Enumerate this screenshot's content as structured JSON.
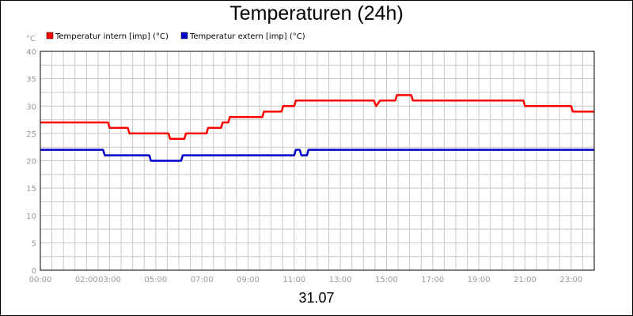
{
  "chart_data": {
    "type": "line",
    "title": "Temperaturen (24h)",
    "ylabel": "°C",
    "xlabel": "",
    "date_label": "31.07",
    "ylim": [
      0,
      40
    ],
    "xlim": [
      0,
      24
    ],
    "y_ticks": [
      "0",
      "5",
      "10",
      "15",
      "20",
      "25",
      "30",
      "35",
      "40"
    ],
    "x_ticks": [
      {
        "t": 0,
        "label": "00:00"
      },
      {
        "t": 2,
        "label": "02:00"
      },
      {
        "t": 3,
        "label": "03:00"
      },
      {
        "t": 5,
        "label": "05:00"
      },
      {
        "t": 7,
        "label": "07:00"
      },
      {
        "t": 9,
        "label": "09:00"
      },
      {
        "t": 11,
        "label": "11:00"
      },
      {
        "t": 13,
        "label": "13:00"
      },
      {
        "t": 15,
        "label": "15:00"
      },
      {
        "t": 17,
        "label": "17:00"
      },
      {
        "t": 19,
        "label": "19:00"
      },
      {
        "t": 21,
        "label": "21:00"
      },
      {
        "t": 23,
        "label": "23:00"
      }
    ],
    "grid": true,
    "legend_position": "top-left",
    "series": [
      {
        "name": "Temperatur intern [imp] (°C)",
        "color": "#ff0000",
        "points": [
          [
            0,
            27
          ],
          [
            2.93,
            27
          ],
          [
            3.0,
            26
          ],
          [
            3.79,
            26
          ],
          [
            3.86,
            25
          ],
          [
            5.55,
            25
          ],
          [
            5.62,
            24
          ],
          [
            6.24,
            24
          ],
          [
            6.31,
            25
          ],
          [
            7.2,
            25
          ],
          [
            7.27,
            26
          ],
          [
            7.83,
            26
          ],
          [
            7.9,
            27
          ],
          [
            8.14,
            27
          ],
          [
            8.21,
            28
          ],
          [
            9.62,
            28
          ],
          [
            9.69,
            29
          ],
          [
            10.45,
            29
          ],
          [
            10.52,
            30
          ],
          [
            11.0,
            30
          ],
          [
            11.07,
            31
          ],
          [
            14.45,
            31
          ],
          [
            14.55,
            30
          ],
          [
            14.72,
            31
          ],
          [
            15.38,
            31
          ],
          [
            15.45,
            32
          ],
          [
            16.07,
            32
          ],
          [
            16.14,
            31
          ],
          [
            20.93,
            31
          ],
          [
            21.0,
            30
          ],
          [
            23.0,
            30
          ],
          [
            23.07,
            29
          ],
          [
            24.0,
            29
          ]
        ]
      },
      {
        "name": "Temperatur extern [imp] (°C)",
        "color": "#0000cc",
        "points": [
          [
            0,
            22
          ],
          [
            2.72,
            22
          ],
          [
            2.79,
            21
          ],
          [
            4.72,
            21
          ],
          [
            4.79,
            20
          ],
          [
            6.1,
            20
          ],
          [
            6.17,
            21
          ],
          [
            11.0,
            21
          ],
          [
            11.07,
            22
          ],
          [
            11.24,
            22
          ],
          [
            11.31,
            21
          ],
          [
            11.55,
            21
          ],
          [
            11.62,
            22
          ],
          [
            24.0,
            22
          ]
        ]
      }
    ]
  },
  "colors": {
    "axis": "#000000",
    "grid": "#c8c8c8",
    "tick_text": "#999999"
  }
}
